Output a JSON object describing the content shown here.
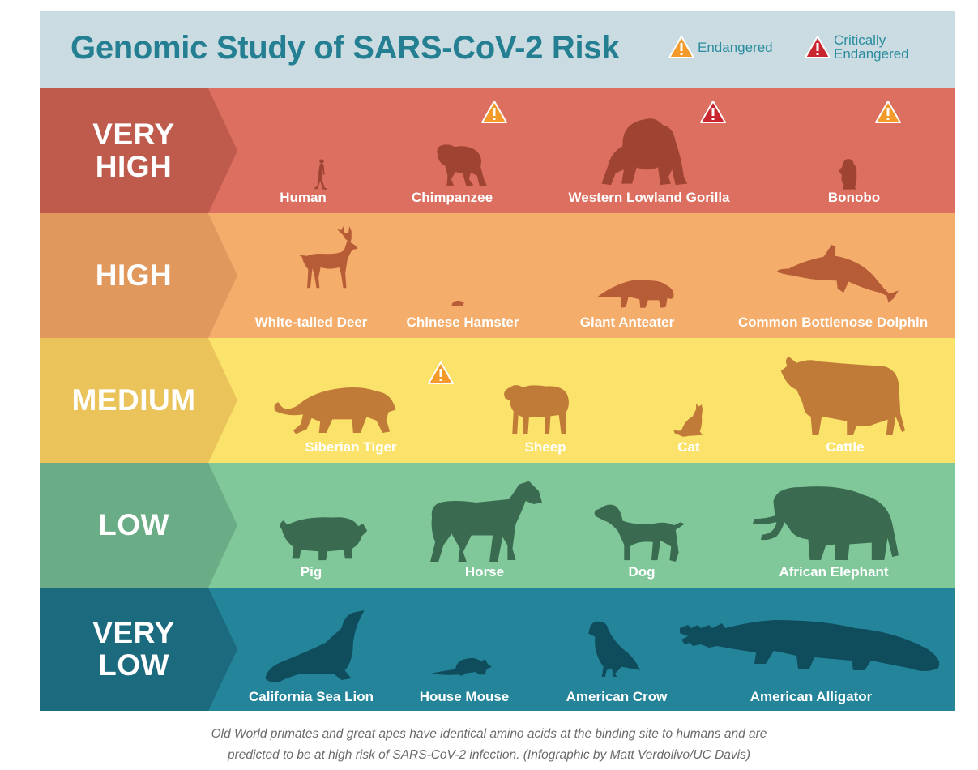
{
  "title": "Genomic Study of SARS-CoV-2 Risk",
  "legend": {
    "endangered": "Endangered",
    "critically_line1": "Critically",
    "critically_line2": "Endangered",
    "endangered_color": "#f39a2a",
    "critically_color": "#c8252f"
  },
  "bands": [
    {
      "label_line1": "VERY",
      "label_line2": "HIGH",
      "tab_color": "#bf5b4d",
      "bg_color": "#dc6f60",
      "silhouette_color": "#9f4433",
      "animals": [
        {
          "name": "Human",
          "icon": "human-icon",
          "status": ""
        },
        {
          "name": "Chimpanzee",
          "icon": "chimpanzee-icon",
          "status": "endangered"
        },
        {
          "name": "Western Lowland Gorilla",
          "icon": "gorilla-icon",
          "status": "critically-endangered"
        },
        {
          "name": "Bonobo",
          "icon": "bonobo-icon",
          "status": "endangered"
        }
      ]
    },
    {
      "label_line1": "HIGH",
      "label_line2": "",
      "tab_color": "#e0985d",
      "bg_color": "#f5ad6c",
      "silhouette_color": "#b65c37",
      "animals": [
        {
          "name": "White-tailed Deer",
          "icon": "deer-icon",
          "status": ""
        },
        {
          "name": "Chinese Hamster",
          "icon": "hamster-icon",
          "status": ""
        },
        {
          "name": "Giant Anteater",
          "icon": "anteater-icon",
          "status": ""
        },
        {
          "name": "Common Bottlenose Dolphin",
          "icon": "dolphin-icon",
          "status": ""
        }
      ]
    },
    {
      "label_line1": "MEDIUM",
      "label_line2": "",
      "tab_color": "#eac35a",
      "bg_color": "#fbe26a",
      "silhouette_color": "#c17b39",
      "animals": [
        {
          "name": "Siberian Tiger",
          "icon": "tiger-icon",
          "status": "endangered"
        },
        {
          "name": "Sheep",
          "icon": "sheep-icon",
          "status": ""
        },
        {
          "name": "Cat",
          "icon": "cat-icon",
          "status": ""
        },
        {
          "name": "Cattle",
          "icon": "cattle-icon",
          "status": ""
        }
      ]
    },
    {
      "label_line1": "LOW",
      "label_line2": "",
      "tab_color": "#6aac85",
      "bg_color": "#80c89a",
      "silhouette_color": "#3a6b50",
      "animals": [
        {
          "name": "Pig",
          "icon": "pig-icon",
          "status": ""
        },
        {
          "name": "Horse",
          "icon": "horse-icon",
          "status": ""
        },
        {
          "name": "Dog",
          "icon": "dog-icon",
          "status": ""
        },
        {
          "name": "African Elephant",
          "icon": "elephant-icon",
          "status": ""
        }
      ]
    },
    {
      "label_line1": "VERY",
      "label_line2": "LOW",
      "tab_color": "#1b6a7e",
      "bg_color": "#24849a",
      "silhouette_color": "#0f4d5c",
      "animals": [
        {
          "name": "California Sea Lion",
          "icon": "sea-lion-icon",
          "status": ""
        },
        {
          "name": "House Mouse",
          "icon": "mouse-icon",
          "status": ""
        },
        {
          "name": "American Crow",
          "icon": "crow-icon",
          "status": ""
        },
        {
          "name": "American Alligator",
          "icon": "alligator-icon",
          "status": ""
        }
      ]
    }
  ],
  "caption": {
    "line1": "Old World primates and great apes have identical amino acids at the binding site to humans and are",
    "line2": "predicted to be at high risk of SARS-CoV-2 infection. (Infographic by  Matt Verdolivo/UC Davis)"
  }
}
